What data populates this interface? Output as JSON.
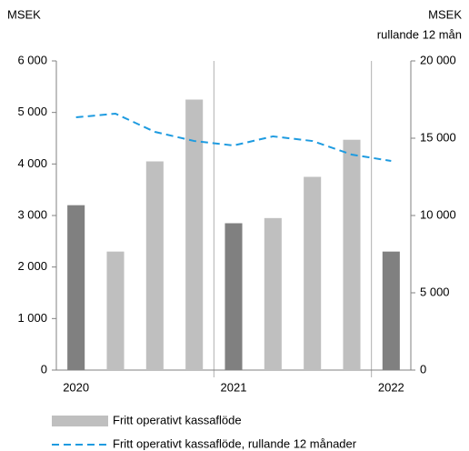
{
  "chart_data": {
    "type": "bar",
    "ylabel": "MSEK",
    "y2label": [
      "MSEK",
      "rullande 12 mån"
    ],
    "categories": [
      "2020",
      null,
      null,
      null,
      "2021",
      null,
      null,
      null,
      "2022"
    ],
    "series": [
      {
        "name": "Fritt operativt kassaflöde",
        "type": "bar",
        "color": "#bfbfbf",
        "colors": [
          "#808080",
          "#bfbfbf",
          "#bfbfbf",
          "#bfbfbf",
          "#808080",
          "#bfbfbf",
          "#bfbfbf",
          "#bfbfbf",
          "#808080"
        ],
        "values": [
          3200,
          2300,
          4050,
          5250,
          2850,
          2950,
          3750,
          4470,
          2300
        ]
      },
      {
        "name": "Fritt operativt kassaflöde, rullande 12 månader",
        "type": "line",
        "color": "#1e9be0",
        "dashed": true,
        "axis": "y2",
        "values": [
          16350,
          16590,
          15410,
          14820,
          14530,
          15120,
          14820,
          13940,
          13530
        ]
      }
    ],
    "ylim": [
      0,
      6000
    ],
    "yticks": [
      0,
      {
        "value": 1000,
        "label": "1 000"
      },
      {
        "value": 2000,
        "label": "2 000"
      },
      {
        "value": 3000,
        "label": "3 000"
      },
      {
        "value": 4000,
        "label": "4 000"
      },
      {
        "value": 5000,
        "label": "5 000"
      },
      {
        "value": 6000,
        "label": "6 000"
      }
    ],
    "y2lim": [
      0,
      20000
    ],
    "y2ticks": [
      0,
      {
        "value": 5000,
        "label": "5 000"
      },
      {
        "value": 10000,
        "label": "10 000"
      },
      {
        "value": 15000,
        "label": "15 000"
      },
      {
        "value": 20000,
        "label": "20 000"
      }
    ],
    "legend": "bottom"
  }
}
